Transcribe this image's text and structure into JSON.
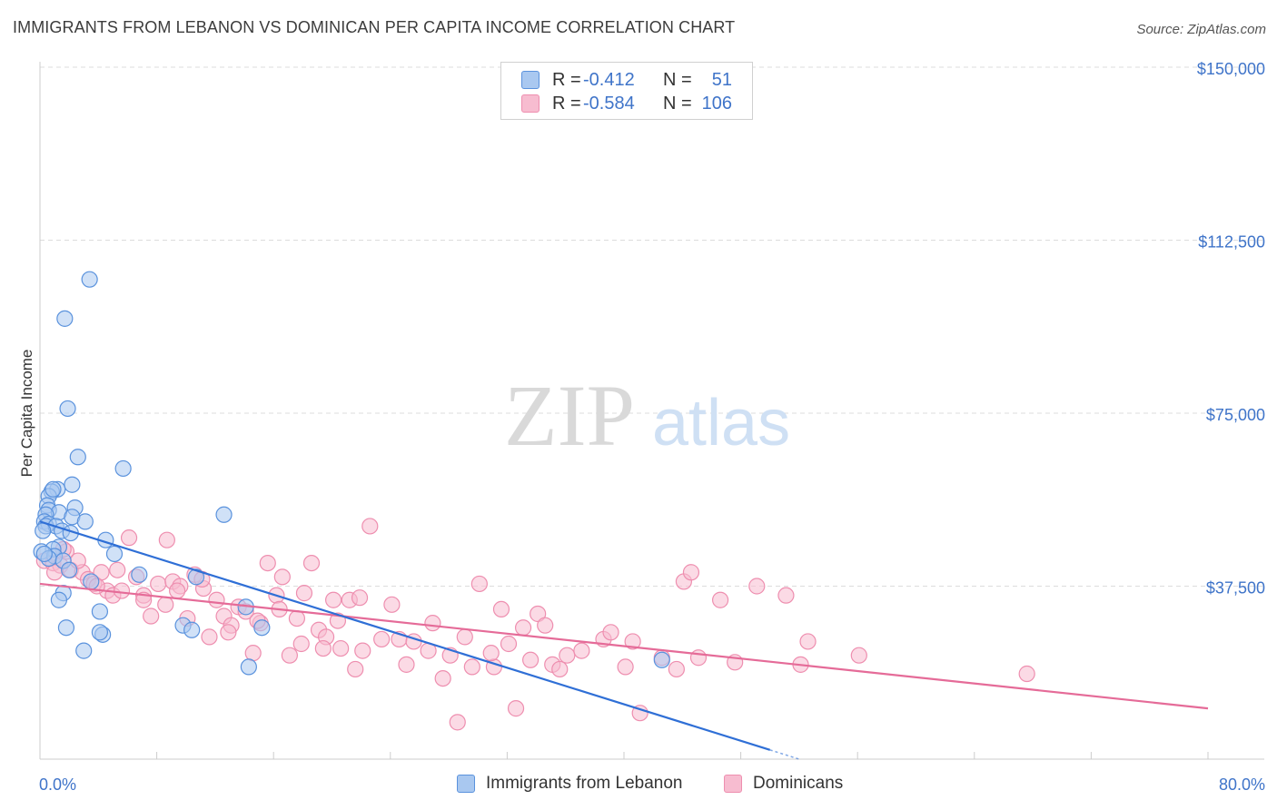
{
  "title": "IMMIGRANTS FROM LEBANON VS DOMINICAN PER CAPITA INCOME CORRELATION CHART",
  "source": "Source: ZipAtlas.com",
  "watermark": {
    "zip": "ZIP",
    "atlas": "atlas"
  },
  "legend": {
    "rows": [
      {
        "r_label": "R =",
        "r_value": "-0.412",
        "n_label": "N =",
        "n_value": "51"
      },
      {
        "r_label": "R =",
        "r_value": "-0.584",
        "n_label": "N =",
        "n_value": "106"
      }
    ]
  },
  "colors": {
    "blue_fill": "#a9c8f0",
    "blue_stroke": "#5a92dd",
    "blue_line": "#2f6fd6",
    "pink_fill": "#f7bcd0",
    "pink_stroke": "#ee8eaf",
    "pink_line": "#e56b98",
    "grid": "#dddddd",
    "axis_text": "#3f74c9"
  },
  "chart_data": {
    "type": "scatter",
    "title": "IMMIGRANTS FROM LEBANON VS DOMINICAN PER CAPITA INCOME CORRELATION CHART",
    "xlabel": "",
    "ylabel": "Per Capita Income",
    "xlim": [
      0,
      80
    ],
    "ylim": [
      0,
      155000
    ],
    "x_tick_labels": [
      "0.0%",
      "80.0%"
    ],
    "y_ticks": [
      37500,
      75000,
      112500,
      150000
    ],
    "y_tick_labels": [
      "$37,500",
      "$75,000",
      "$112,500",
      "$150,000"
    ],
    "series": [
      {
        "name": "Immigrants from Lebanon",
        "color": "#5a92dd",
        "r": -0.412,
        "n": 51,
        "trend": {
          "x": [
            0,
            50
          ],
          "y": [
            51500,
            2000
          ]
        },
        "trend_dashed_ext": {
          "x": [
            50,
            52
          ],
          "y": [
            2000,
            0
          ]
        },
        "points": [
          [
            3.4,
            104000
          ],
          [
            1.7,
            95500
          ],
          [
            1.9,
            76000
          ],
          [
            2.6,
            65500
          ],
          [
            5.7,
            63000
          ],
          [
            1.2,
            58500
          ],
          [
            0.8,
            58000
          ],
          [
            0.6,
            57000
          ],
          [
            2.2,
            59500
          ],
          [
            0.5,
            55000
          ],
          [
            0.6,
            54000
          ],
          [
            2.4,
            54500
          ],
          [
            1.3,
            53500
          ],
          [
            0.4,
            53000
          ],
          [
            2.2,
            52500
          ],
          [
            0.3,
            51500
          ],
          [
            0.6,
            51000
          ],
          [
            3.1,
            51500
          ],
          [
            0.4,
            50500
          ],
          [
            1.1,
            50500
          ],
          [
            1.5,
            49500
          ],
          [
            0.2,
            49500
          ],
          [
            4.5,
            47500
          ],
          [
            1.3,
            46000
          ],
          [
            0.9,
            45500
          ],
          [
            0.1,
            45000
          ],
          [
            5.1,
            44500
          ],
          [
            1.0,
            44000
          ],
          [
            0.6,
            43500
          ],
          [
            1.6,
            43000
          ],
          [
            2.0,
            41000
          ],
          [
            6.8,
            40000
          ],
          [
            10.7,
            39500
          ],
          [
            3.5,
            38500
          ],
          [
            1.6,
            36000
          ],
          [
            1.3,
            34500
          ],
          [
            4.1,
            32000
          ],
          [
            14.1,
            33000
          ],
          [
            1.8,
            28500
          ],
          [
            9.8,
            29000
          ],
          [
            10.4,
            28000
          ],
          [
            15.2,
            28500
          ],
          [
            4.3,
            27000
          ],
          [
            4.1,
            27500
          ],
          [
            3.0,
            23500
          ],
          [
            14.3,
            20000
          ],
          [
            42.6,
            21500
          ],
          [
            12.6,
            53000
          ],
          [
            0.9,
            58500
          ],
          [
            2.1,
            49000
          ],
          [
            0.3,
            44500
          ]
        ]
      },
      {
        "name": "Dominicans",
        "color": "#ee8eaf",
        "r": -0.584,
        "n": 106,
        "trend": {
          "x": [
            0,
            80
          ],
          "y": [
            38000,
            11000
          ]
        },
        "points": [
          [
            0.3,
            43000
          ],
          [
            0.9,
            42500
          ],
          [
            1.4,
            42000
          ],
          [
            1.8,
            45000
          ],
          [
            2.1,
            41000
          ],
          [
            2.9,
            40500
          ],
          [
            3.3,
            39000
          ],
          [
            3.7,
            38000
          ],
          [
            4.2,
            40500
          ],
          [
            4.6,
            36500
          ],
          [
            5.0,
            35500
          ],
          [
            5.6,
            36500
          ],
          [
            6.1,
            48000
          ],
          [
            6.6,
            39500
          ],
          [
            7.1,
            35500
          ],
          [
            7.6,
            31000
          ],
          [
            8.1,
            38000
          ],
          [
            8.6,
            33500
          ],
          [
            8.7,
            47500
          ],
          [
            9.1,
            38500
          ],
          [
            9.6,
            37500
          ],
          [
            10.1,
            30500
          ],
          [
            10.6,
            40000
          ],
          [
            11.2,
            37000
          ],
          [
            11.6,
            26500
          ],
          [
            12.1,
            34500
          ],
          [
            12.6,
            31000
          ],
          [
            13.1,
            29000
          ],
          [
            13.6,
            33000
          ],
          [
            14.1,
            32000
          ],
          [
            14.6,
            23000
          ],
          [
            15.1,
            29500
          ],
          [
            15.6,
            42500
          ],
          [
            16.2,
            35500
          ],
          [
            16.6,
            39500
          ],
          [
            17.1,
            22500
          ],
          [
            17.6,
            30500
          ],
          [
            18.1,
            36000
          ],
          [
            18.6,
            42500
          ],
          [
            19.1,
            28000
          ],
          [
            19.6,
            26500
          ],
          [
            20.1,
            34500
          ],
          [
            20.6,
            24000
          ],
          [
            21.2,
            34500
          ],
          [
            21.6,
            19500
          ],
          [
            22.1,
            23500
          ],
          [
            22.6,
            50500
          ],
          [
            24.1,
            33500
          ],
          [
            24.6,
            26000
          ],
          [
            25.6,
            25500
          ],
          [
            26.6,
            23500
          ],
          [
            27.6,
            17500
          ],
          [
            28.1,
            22500
          ],
          [
            28.6,
            8000
          ],
          [
            29.6,
            20000
          ],
          [
            30.1,
            38000
          ],
          [
            31.1,
            20000
          ],
          [
            31.6,
            32500
          ],
          [
            32.1,
            25000
          ],
          [
            32.6,
            11000
          ],
          [
            33.1,
            28500
          ],
          [
            33.6,
            21500
          ],
          [
            34.1,
            31500
          ],
          [
            35.1,
            20500
          ],
          [
            35.6,
            19500
          ],
          [
            36.1,
            22500
          ],
          [
            37.1,
            23500
          ],
          [
            38.6,
            26000
          ],
          [
            39.1,
            27500
          ],
          [
            40.1,
            20000
          ],
          [
            40.6,
            25500
          ],
          [
            41.1,
            10000
          ],
          [
            42.6,
            22000
          ],
          [
            43.6,
            19500
          ],
          [
            44.1,
            38500
          ],
          [
            44.6,
            40500
          ],
          [
            45.1,
            22000
          ],
          [
            46.6,
            34500
          ],
          [
            47.6,
            21000
          ],
          [
            49.1,
            37500
          ],
          [
            51.1,
            35500
          ],
          [
            52.1,
            20500
          ],
          [
            52.6,
            25500
          ],
          [
            56.1,
            22500
          ],
          [
            67.6,
            18500
          ],
          [
            1.0,
            40500
          ],
          [
            1.6,
            45500
          ],
          [
            2.6,
            43000
          ],
          [
            3.9,
            37500
          ],
          [
            5.3,
            41000
          ],
          [
            7.1,
            34500
          ],
          [
            9.4,
            36500
          ],
          [
            11.1,
            39000
          ],
          [
            12.9,
            27500
          ],
          [
            14.9,
            30000
          ],
          [
            16.4,
            32500
          ],
          [
            17.9,
            25000
          ],
          [
            19.4,
            24000
          ],
          [
            20.4,
            30000
          ],
          [
            21.9,
            35000
          ],
          [
            23.4,
            26000
          ],
          [
            25.1,
            20500
          ],
          [
            26.9,
            29500
          ],
          [
            29.1,
            26500
          ],
          [
            30.9,
            23000
          ],
          [
            34.6,
            29000
          ]
        ]
      }
    ]
  },
  "bottom_legend": {
    "series1": "Immigrants from Lebanon",
    "series2": "Dominicans"
  }
}
